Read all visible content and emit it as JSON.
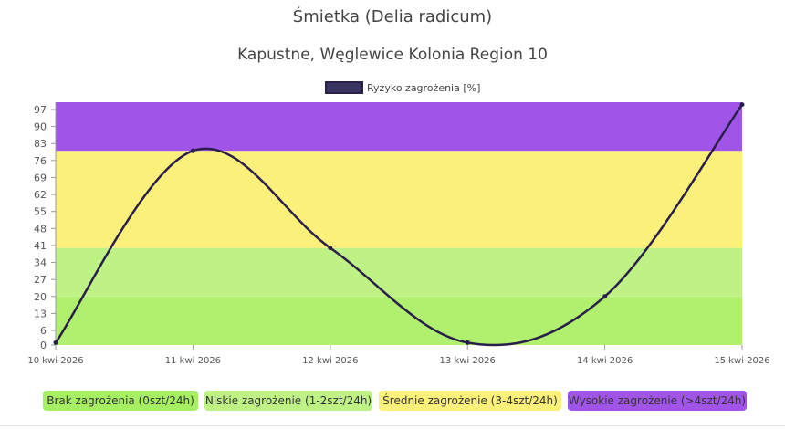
{
  "title": "Śmietka (Delia radicum)",
  "subtitle": "Kapustne, Węglewice Kolonia Region 10",
  "chart_data": {
    "type": "line",
    "x": [
      "10 kwi 2026",
      "11 kwi 2026",
      "12 kwi 2026",
      "13 kwi 2026",
      "14 kwi 2026",
      "15 kwi 2026"
    ],
    "series": [
      {
        "name": "Ryzyko zagrożenia [%]",
        "values": [
          1,
          80,
          40,
          1,
          20,
          99
        ],
        "color": "#2a1f4a"
      }
    ],
    "yticks": [
      0,
      6,
      13,
      20,
      27,
      34,
      41,
      48,
      55,
      62,
      69,
      76,
      83,
      90,
      97
    ],
    "ylim": [
      0,
      100
    ],
    "bands": [
      {
        "from": 0,
        "to": 20,
        "color": "#b0f06e"
      },
      {
        "from": 20,
        "to": 40,
        "color": "#bff285"
      },
      {
        "from": 40,
        "to": 80,
        "color": "#fbf07a"
      },
      {
        "from": 80,
        "to": 100,
        "color": "#a155e8"
      }
    ],
    "legend_top": "Ryzyko zagrożenia [%]",
    "legend_swatch_color": "#3a3560"
  },
  "risk_legend": [
    {
      "label": "Brak zagrożenia (0szt/24h)",
      "color": "#a6ef62"
    },
    {
      "label": "Niskie zagrożenie (1-2szt/24h)",
      "color": "#bff285"
    },
    {
      "label": "Średnie zagrożenie (3-4szt/24h)",
      "color": "#fbf07a"
    },
    {
      "label": "Wysokie zagrożenie (>4szt/24h)",
      "color": "#a155e8"
    }
  ]
}
